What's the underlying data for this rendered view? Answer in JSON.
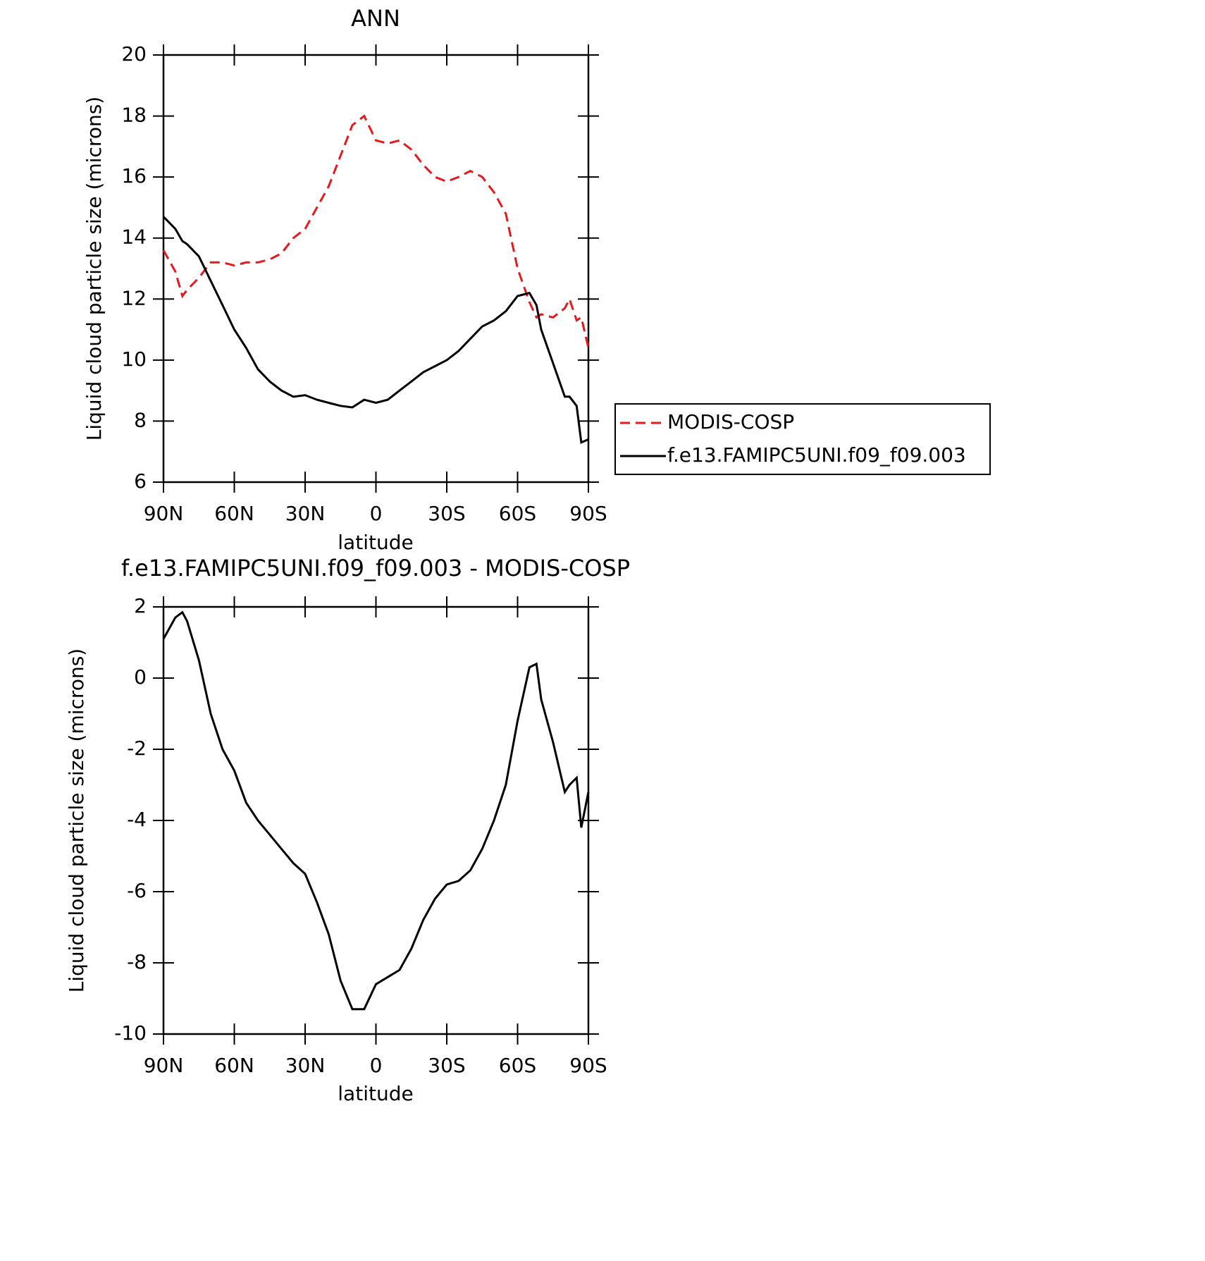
{
  "chart_data": [
    {
      "type": "line",
      "title": "ANN",
      "xlabel": "latitude",
      "ylabel": "Liquid cloud particle size (microns)",
      "x": [
        90,
        85,
        82,
        80,
        75,
        70,
        65,
        60,
        55,
        50,
        45,
        40,
        35,
        30,
        25,
        20,
        15,
        10,
        5,
        0,
        -5,
        -10,
        -15,
        -20,
        -25,
        -30,
        -35,
        -40,
        -45,
        -50,
        -55,
        -60,
        -65,
        -68,
        -70,
        -75,
        -80,
        -82,
        -85,
        -87,
        -90
      ],
      "series": [
        {
          "name": "MODIS-COSP",
          "color": "#e41a1c",
          "linestyle": "dashed",
          "values": [
            13.6,
            12.9,
            12.1,
            12.3,
            12.7,
            13.2,
            13.2,
            13.1,
            13.2,
            13.2,
            13.3,
            13.5,
            14.0,
            14.3,
            15.0,
            15.7,
            16.7,
            17.7,
            18.0,
            17.2,
            17.1,
            17.2,
            16.9,
            16.4,
            16.0,
            15.85,
            16.0,
            16.2,
            16.0,
            15.5,
            14.8,
            13.0,
            11.9,
            11.4,
            11.5,
            11.4,
            11.7,
            12.0,
            11.3,
            11.4,
            10.4
          ]
        },
        {
          "name": "f.e13.FAMIPC5UNI.f09_f09.003",
          "color": "#000000",
          "linestyle": "solid",
          "values": [
            14.7,
            14.3,
            13.9,
            13.8,
            13.4,
            12.6,
            11.8,
            11.0,
            10.4,
            9.7,
            9.3,
            9.0,
            8.8,
            8.85,
            8.7,
            8.6,
            8.5,
            8.45,
            8.7,
            8.6,
            8.7,
            9.0,
            9.3,
            9.6,
            9.8,
            10.0,
            10.3,
            10.7,
            11.1,
            11.3,
            11.6,
            12.1,
            12.2,
            11.8,
            11.0,
            9.9,
            8.8,
            8.8,
            8.5,
            7.3,
            7.4
          ]
        }
      ],
      "xlim": [
        90,
        -90
      ],
      "xticks": [
        {
          "value": 90,
          "label": "90N"
        },
        {
          "value": 60,
          "label": "60N"
        },
        {
          "value": 30,
          "label": "30N"
        },
        0,
        {
          "value": -30,
          "label": "30S"
        },
        {
          "value": -60,
          "label": "60S"
        },
        {
          "value": -90,
          "label": "90S"
        }
      ],
      "ylim": [
        6,
        20
      ],
      "yticks": [
        6,
        8,
        10,
        12,
        14,
        16,
        18,
        20
      ],
      "legend": "right"
    },
    {
      "type": "line",
      "title": "f.e13.FAMIPC5UNI.f09_f09.003 - MODIS-COSP",
      "xlabel": "latitude",
      "ylabel": "Liquid cloud particle size (microns)",
      "x": [
        90,
        85,
        82,
        80,
        75,
        70,
        65,
        60,
        55,
        50,
        45,
        40,
        35,
        30,
        25,
        20,
        15,
        10,
        5,
        0,
        -5,
        -10,
        -15,
        -20,
        -25,
        -30,
        -35,
        -40,
        -45,
        -50,
        -55,
        -60,
        -65,
        -68,
        -70,
        -75,
        -80,
        -82,
        -85,
        -87,
        -90
      ],
      "series": [
        {
          "color": "#000000",
          "linestyle": "solid",
          "values": [
            1.1,
            1.7,
            1.85,
            1.6,
            0.5,
            -1.0,
            -2.0,
            -2.6,
            -3.5,
            -4.0,
            -4.4,
            -4.8,
            -5.2,
            -5.5,
            -6.3,
            -7.2,
            -8.5,
            -9.3,
            -9.3,
            -8.6,
            -8.4,
            -8.2,
            -7.6,
            -6.8,
            -6.2,
            -5.8,
            -5.7,
            -5.4,
            -4.8,
            -4.0,
            -3.0,
            -1.2,
            0.3,
            0.4,
            -0.6,
            -1.8,
            -3.2,
            -3.0,
            -2.8,
            -4.2,
            -3.2
          ]
        }
      ],
      "xlim": [
        90,
        -90
      ],
      "xticks": [
        {
          "value": 90,
          "label": "90N"
        },
        {
          "value": 60,
          "label": "60N"
        },
        {
          "value": 30,
          "label": "30N"
        },
        0,
        {
          "value": -30,
          "label": "30S"
        },
        {
          "value": -60,
          "label": "60S"
        },
        {
          "value": -90,
          "label": "90S"
        }
      ],
      "ylim": [
        -10,
        2
      ],
      "yticks": [
        -10,
        -8,
        -6,
        -4,
        -2,
        0,
        2
      ]
    }
  ]
}
